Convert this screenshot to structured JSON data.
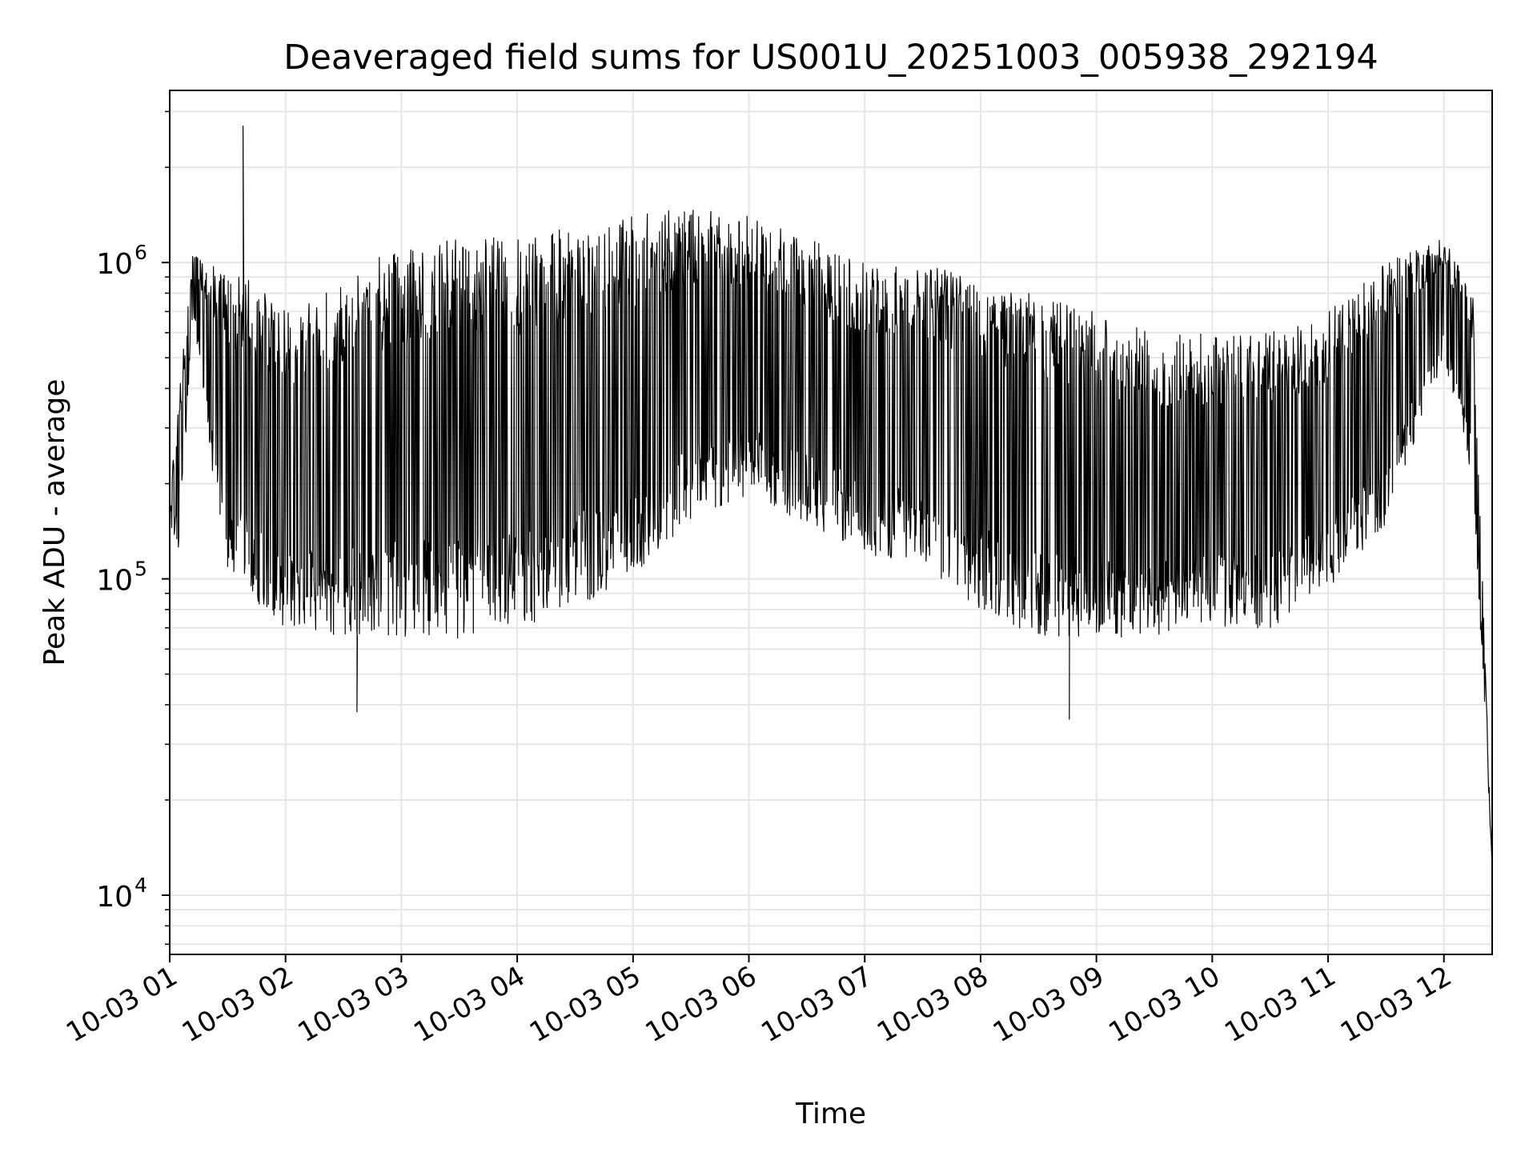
{
  "chart_data": {
    "type": "line",
    "title": "Deaveraged field sums for US001U_20251003_005938_292194",
    "xlabel": "Time",
    "ylabel": "Peak ADU - average",
    "yscale": "log",
    "ylim": [
      6500,
      3500000
    ],
    "xlim": [
      "2025-10-03 01:00",
      "2025-10-03 12:25"
    ],
    "grid": true,
    "legend": "none",
    "x_tick_labels": [
      "10-03 01",
      "10-03 02",
      "10-03 03",
      "10-03 04",
      "10-03 05",
      "10-03 06",
      "10-03 07",
      "10-03 08",
      "10-03 09",
      "10-03 10",
      "10-03 11",
      "10-03 12"
    ],
    "y_tick_labels": [
      {
        "value": 10000,
        "base": "10",
        "exp": "4"
      },
      {
        "value": 100000,
        "base": "10",
        "exp": "5"
      },
      {
        "value": 1000000,
        "base": "10",
        "exp": "6"
      }
    ],
    "colors": {
      "line": "#000000",
      "grid": "#e6e6e6",
      "axes": "#000000"
    },
    "series": [
      {
        "x": [
          "2025-10-03 01:00",
          "2025-10-03 01:05",
          "2025-10-03 01:12",
          "2025-10-03 01:20",
          "2025-10-03 01:30",
          "2025-10-03 01:40",
          "2025-10-03 02:00",
          "2025-10-03 02:30",
          "2025-10-03 03:00",
          "2025-10-03 03:30",
          "2025-10-03 04:00",
          "2025-10-03 04:30",
          "2025-10-03 05:00",
          "2025-10-03 05:30",
          "2025-10-03 06:00",
          "2025-10-03 06:30",
          "2025-10-03 07:00",
          "2025-10-03 07:30",
          "2025-10-03 08:00",
          "2025-10-03 08:30",
          "2025-10-03 09:00",
          "2025-10-03 09:30",
          "2025-10-03 10:00",
          "2025-10-03 10:30",
          "2025-10-03 11:00",
          "2025-10-03 11:30",
          "2025-10-03 12:00",
          "2025-10-03 12:15",
          "2025-10-03 12:25"
        ],
        "upper": [
          180000,
          400000,
          1100000,
          1000000,
          900000,
          900000,
          700000,
          950000,
          1100000,
          1200000,
          1200000,
          1300000,
          1400000,
          1500000,
          1400000,
          1200000,
          1000000,
          1000000,
          900000,
          800000,
          700000,
          600000,
          600000,
          600000,
          700000,
          1000000,
          1200000,
          800000,
          12000
        ],
        "lower": [
          150000,
          120000,
          700000,
          250000,
          100000,
          90000,
          70000,
          65000,
          65000,
          65000,
          70000,
          80000,
          100000,
          150000,
          180000,
          150000,
          120000,
          110000,
          80000,
          65000,
          65000,
          65000,
          70000,
          70000,
          90000,
          150000,
          500000,
          200000,
          12000
        ]
      }
    ],
    "notable_points": [
      {
        "x": "2025-10-03 01:38",
        "y": 2700000
      },
      {
        "x": "2025-10-03 02:37",
        "y": 38000
      },
      {
        "x": "2025-10-03 08:46",
        "y": 36000
      }
    ]
  }
}
